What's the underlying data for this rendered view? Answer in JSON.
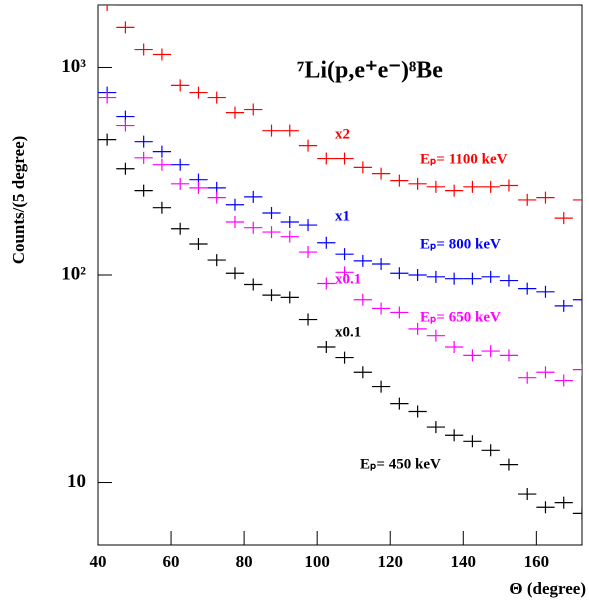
{
  "chart_data": {
    "type": "scatter",
    "title": "⁷Li(p,e⁺e⁻)⁸Be",
    "xlabel": "Θ (degree)",
    "ylabel": "Counts/(5 degree)",
    "xlim": [
      40,
      172.5
    ],
    "ylim": [
      5,
      2000
    ],
    "log_y": true,
    "xticks": [
      40,
      60,
      80,
      100,
      120,
      140,
      160
    ],
    "yticks": [
      {
        "value": 10,
        "label": "10"
      },
      {
        "value": 100,
        "label": "10²"
      },
      {
        "value": 1000,
        "label": "10³"
      }
    ],
    "x": [
      42.5,
      47.5,
      52.5,
      57.5,
      62.5,
      67.5,
      72.5,
      77.5,
      82.5,
      87.5,
      92.5,
      97.5,
      102.5,
      107.5,
      112.5,
      117.5,
      122.5,
      127.5,
      132.5,
      137.5,
      142.5,
      147.5,
      152.5,
      157.5,
      162.5,
      167.5,
      172.5
    ],
    "series": [
      {
        "name": "Eₚ= 1100 keV",
        "factor": "x2",
        "color": "#ff0000",
        "values": [
          2000,
          1560,
          1220,
          1155,
          820,
          757,
          716,
          606,
          627,
          496,
          496,
          420,
          364,
          364,
          330,
          308,
          285,
          275,
          266,
          255,
          266,
          266,
          270,
          230,
          236,
          188,
          230
        ]
      },
      {
        "name": "Eₚ= 800 keV",
        "factor": "x1",
        "color": "#0000ff",
        "values": [
          757,
          580,
          439,
          393,
          340,
          288,
          263,
          218,
          238,
          199,
          180,
          174,
          143,
          126,
          117,
          113,
          102,
          100,
          98,
          96,
          96,
          98,
          94,
          86,
          83,
          71,
          76
        ]
      },
      {
        "name": "Eₚ= 650 keV",
        "factor": "x0.1",
        "color": "#ff00ff",
        "values": [
          716,
          525,
          367,
          340,
          275,
          263,
          236,
          180,
          169,
          161,
          153,
          129,
          91,
          103,
          76,
          69,
          66,
          55,
          51,
          45,
          41,
          43,
          41,
          32,
          34,
          31,
          35
        ]
      },
      {
        "name": "Eₚ= 450 keV",
        "factor": "x0.1",
        "color": "#000000",
        "values": [
          449,
          325,
          255,
          211,
          167,
          141,
          118,
          102,
          90,
          80,
          78,
          61,
          45,
          40,
          34,
          29,
          24,
          22,
          18.5,
          16.9,
          15.8,
          14.3,
          12.2,
          8.8,
          7.6,
          8.0,
          7.1
        ]
      }
    ]
  }
}
